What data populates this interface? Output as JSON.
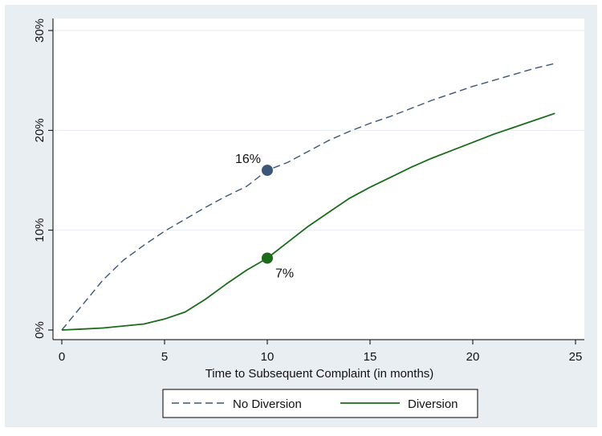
{
  "chart_data": {
    "type": "line",
    "title": "",
    "xlabel": "Time to Subsequent Complaint (in months)",
    "ylabel": "",
    "xlim": [
      0,
      25
    ],
    "ylim": [
      0,
      0.3
    ],
    "x_ticks": [
      0,
      5,
      10,
      15,
      20,
      25
    ],
    "x_tick_labels": [
      "0",
      "5",
      "10",
      "15",
      "20",
      "25"
    ],
    "y_ticks": [
      0,
      0.1,
      0.2,
      0.3
    ],
    "y_tick_labels": [
      "0%",
      "10%",
      "20%",
      "30%"
    ],
    "grid": "horizontal",
    "legend_position": "bottom",
    "colors": {
      "no_diversion": "#3b5678",
      "diversion": "#1a6b1a",
      "plot_bg": "#e9eef3",
      "panel_bg": "#ffffff"
    },
    "series": [
      {
        "name": "No Diversion",
        "style": "dashed",
        "x": [
          0,
          1,
          2,
          3,
          4,
          5,
          6,
          7,
          8,
          9,
          10,
          11,
          12,
          13,
          14,
          15,
          16,
          17,
          18,
          19,
          20,
          21,
          22,
          23,
          24
        ],
        "y": [
          0,
          0.025,
          0.05,
          0.07,
          0.085,
          0.099,
          0.111,
          0.123,
          0.134,
          0.144,
          0.16,
          0.168,
          0.179,
          0.19,
          0.199,
          0.207,
          0.214,
          0.222,
          0.23,
          0.237,
          0.244,
          0.25,
          0.256,
          0.262,
          0.267
        ]
      },
      {
        "name": "Diversion",
        "style": "solid",
        "x": [
          0,
          1,
          2,
          3,
          4,
          5,
          6,
          7,
          8,
          9,
          10,
          11,
          12,
          13,
          14,
          15,
          16,
          17,
          18,
          19,
          20,
          21,
          22,
          23,
          24
        ],
        "y": [
          0,
          0.001,
          0.002,
          0.004,
          0.006,
          0.011,
          0.018,
          0.031,
          0.046,
          0.06,
          0.072,
          0.088,
          0.104,
          0.118,
          0.132,
          0.143,
          0.153,
          0.163,
          0.172,
          0.18,
          0.188,
          0.196,
          0.203,
          0.21,
          0.217
        ]
      }
    ],
    "annotations": [
      {
        "series": "No Diversion",
        "x": 10,
        "y": 0.16,
        "label": "16%",
        "label_position": "upper-left"
      },
      {
        "series": "Diversion",
        "x": 10,
        "y": 0.072,
        "label": "7%",
        "label_position": "lower-right"
      }
    ]
  }
}
